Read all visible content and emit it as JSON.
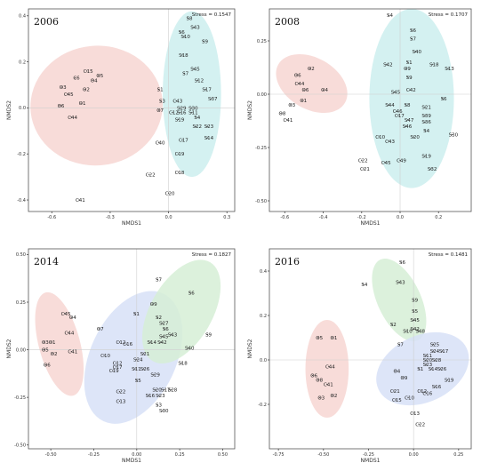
{
  "chart_data": [
    {
      "type": "scatter",
      "title": "2006",
      "stress_label": "Stress = 0.1547",
      "xlabel": "NMDS1",
      "ylabel": "NMDS2",
      "xlim": [
        -0.72,
        0.34
      ],
      "ylim": [
        -0.45,
        0.43
      ],
      "xticks": [
        -0.6,
        -0.3,
        0.0,
        0.3
      ],
      "xtick_labels": [
        "-0.6",
        "-0.3",
        "0.0",
        "0.3"
      ],
      "yticks": [
        -0.4,
        -0.2,
        0.0,
        0.2,
        0.4
      ],
      "ytick_labels": [
        "-0.4",
        "-0.2",
        "0.0",
        "0.2",
        "0.4"
      ],
      "ellipses": [
        {
          "group": "C",
          "color": "#f7d6d2",
          "cx": -0.37,
          "cy": 0.01,
          "rx": 0.34,
          "ry": 0.26,
          "angle": 5
        },
        {
          "group": "S",
          "color": "#cdeeee",
          "cx": 0.12,
          "cy": 0.06,
          "rx": 0.15,
          "ry": 0.36,
          "angle": 0
        }
      ],
      "points": [
        {
          "label": "C15",
          "x": -0.42,
          "y": 0.16
        },
        {
          "label": "C6",
          "x": -0.48,
          "y": 0.13
        },
        {
          "label": "O5",
          "x": -0.36,
          "y": 0.14
        },
        {
          "label": "O4",
          "x": -0.39,
          "y": 0.12
        },
        {
          "label": "O3",
          "x": -0.55,
          "y": 0.09
        },
        {
          "label": "O2",
          "x": -0.43,
          "y": 0.08
        },
        {
          "label": "C45",
          "x": -0.52,
          "y": 0.06
        },
        {
          "label": "O1",
          "x": -0.45,
          "y": 0.02
        },
        {
          "label": "O6",
          "x": -0.56,
          "y": 0.01
        },
        {
          "label": "C44",
          "x": -0.5,
          "y": -0.04
        },
        {
          "label": "C41",
          "x": -0.46,
          "y": -0.4
        },
        {
          "label": "S8",
          "x": 0.1,
          "y": 0.39
        },
        {
          "label": "S43",
          "x": 0.13,
          "y": 0.35
        },
        {
          "label": "S6",
          "x": 0.06,
          "y": 0.33
        },
        {
          "label": "S10",
          "x": 0.08,
          "y": 0.31
        },
        {
          "label": "S9",
          "x": 0.18,
          "y": 0.29
        },
        {
          "label": "S18",
          "x": 0.07,
          "y": 0.23
        },
        {
          "label": "S45",
          "x": 0.13,
          "y": 0.17
        },
        {
          "label": "S7",
          "x": 0.08,
          "y": 0.15
        },
        {
          "label": "S12",
          "x": 0.15,
          "y": 0.12
        },
        {
          "label": "S1",
          "x": -0.05,
          "y": 0.08
        },
        {
          "label": "S17",
          "x": 0.19,
          "y": 0.08
        },
        {
          "label": "S37",
          "x": 0.22,
          "y": 0.04
        },
        {
          "label": "S3",
          "x": -0.04,
          "y": 0.03
        },
        {
          "label": "C43",
          "x": 0.04,
          "y": 0.03
        },
        {
          "label": "S29",
          "x": 0.06,
          "y": 0.0
        },
        {
          "label": "S30",
          "x": 0.12,
          "y": 0.0
        },
        {
          "label": "O7",
          "x": -0.05,
          "y": -0.01
        },
        {
          "label": "C12",
          "x": 0.02,
          "y": -0.02
        },
        {
          "label": "S16",
          "x": 0.06,
          "y": -0.02
        },
        {
          "label": "S11",
          "x": 0.12,
          "y": -0.02
        },
        {
          "label": "S4",
          "x": 0.14,
          "y": -0.04
        },
        {
          "label": "S19",
          "x": 0.05,
          "y": -0.05
        },
        {
          "label": "S22",
          "x": 0.14,
          "y": -0.08
        },
        {
          "label": "S23",
          "x": 0.2,
          "y": -0.08
        },
        {
          "label": "S14",
          "x": 0.2,
          "y": -0.13
        },
        {
          "label": "C40",
          "x": -0.05,
          "y": -0.15
        },
        {
          "label": "C17",
          "x": 0.07,
          "y": -0.14
        },
        {
          "label": "C19",
          "x": 0.05,
          "y": -0.2
        },
        {
          "label": "C22",
          "x": -0.1,
          "y": -0.29
        },
        {
          "label": "C18",
          "x": 0.05,
          "y": -0.28
        },
        {
          "label": "C20",
          "x": 0.0,
          "y": -0.37
        }
      ]
    },
    {
      "type": "scatter",
      "title": "2008",
      "stress_label": "Stress = 0.1707",
      "xlabel": "NMDS1",
      "ylabel": "NMDS2",
      "xlim": [
        -0.68,
        0.37
      ],
      "ylim": [
        -0.55,
        0.4
      ],
      "xticks": [
        -0.6,
        -0.4,
        -0.2,
        0.0,
        0.2
      ],
      "xtick_labels": [
        "-0.6",
        "-0.4",
        "-0.2",
        "0.0",
        "0.2"
      ],
      "yticks": [
        -0.5,
        -0.25,
        0.0,
        0.25
      ],
      "ytick_labels": [
        "-0.50",
        "-0.25",
        "0.00",
        "0.25"
      ],
      "ellipses": [
        {
          "group": "C",
          "color": "#f7d6d2",
          "cx": -0.46,
          "cy": 0.05,
          "rx": 0.2,
          "ry": 0.12,
          "angle": -30
        },
        {
          "group": "S",
          "color": "#cdeeee",
          "cx": 0.06,
          "cy": -0.02,
          "rx": 0.22,
          "ry": 0.42,
          "angle": 0
        }
      ],
      "points": [
        {
          "label": "S4",
          "x": -0.06,
          "y": 0.37
        },
        {
          "label": "S6",
          "x": 0.06,
          "y": 0.3
        },
        {
          "label": "S7",
          "x": 0.06,
          "y": 0.26
        },
        {
          "label": "S40",
          "x": 0.08,
          "y": 0.2
        },
        {
          "label": "S1",
          "x": 0.04,
          "y": 0.15
        },
        {
          "label": "S18",
          "x": 0.17,
          "y": 0.14
        },
        {
          "label": "S13",
          "x": 0.25,
          "y": 0.12
        },
        {
          "label": "S42",
          "x": -0.07,
          "y": 0.14
        },
        {
          "label": "O9",
          "x": 0.03,
          "y": 0.12
        },
        {
          "label": "S9",
          "x": 0.04,
          "y": 0.08
        },
        {
          "label": "C42",
          "x": 0.05,
          "y": 0.02
        },
        {
          "label": "S45",
          "x": -0.03,
          "y": 0.01
        },
        {
          "label": "S6",
          "x": 0.22,
          "y": -0.02
        },
        {
          "label": "S44",
          "x": -0.06,
          "y": -0.05
        },
        {
          "label": "S8",
          "x": 0.03,
          "y": -0.05
        },
        {
          "label": "S21",
          "x": 0.13,
          "y": -0.06
        },
        {
          "label": "C46",
          "x": -0.02,
          "y": -0.08
        },
        {
          "label": "C17",
          "x": -0.01,
          "y": -0.1
        },
        {
          "label": "S47",
          "x": 0.04,
          "y": -0.12
        },
        {
          "label": "S39",
          "x": 0.13,
          "y": -0.1
        },
        {
          "label": "S46",
          "x": 0.03,
          "y": -0.15
        },
        {
          "label": "S36",
          "x": 0.13,
          "y": -0.13
        },
        {
          "label": "S4",
          "x": 0.13,
          "y": -0.17
        },
        {
          "label": "C10",
          "x": -0.11,
          "y": -0.2
        },
        {
          "label": "C43",
          "x": -0.06,
          "y": -0.22
        },
        {
          "label": "S20",
          "x": 0.07,
          "y": -0.2
        },
        {
          "label": "S30",
          "x": 0.27,
          "y": -0.19
        },
        {
          "label": "C22",
          "x": -0.2,
          "y": -0.31
        },
        {
          "label": "C45",
          "x": -0.08,
          "y": -0.32
        },
        {
          "label": "C49",
          "x": 0.0,
          "y": -0.31
        },
        {
          "label": "S19",
          "x": 0.13,
          "y": -0.29
        },
        {
          "label": "C21",
          "x": -0.19,
          "y": -0.35
        },
        {
          "label": "S32",
          "x": 0.16,
          "y": -0.35
        },
        {
          "label": "O2",
          "x": -0.47,
          "y": 0.12
        },
        {
          "label": "O6",
          "x": -0.54,
          "y": 0.09
        },
        {
          "label": "C44",
          "x": -0.53,
          "y": 0.05
        },
        {
          "label": "O6",
          "x": -0.5,
          "y": 0.02
        },
        {
          "label": "O4",
          "x": -0.4,
          "y": 0.02
        },
        {
          "label": "O1",
          "x": -0.51,
          "y": -0.03
        },
        {
          "label": "O3",
          "x": -0.57,
          "y": -0.05
        },
        {
          "label": "O8",
          "x": -0.62,
          "y": -0.09
        },
        {
          "label": "C41",
          "x": -0.59,
          "y": -0.12
        }
      ]
    },
    {
      "type": "scatter",
      "title": "2014",
      "stress_label": "Stress = 0.1827",
      "xlabel": "NMDS1",
      "ylabel": "NMDS2",
      "xlim": [
        -0.63,
        0.57
      ],
      "ylim": [
        -0.52,
        0.53
      ],
      "xticks": [
        -0.5,
        -0.25,
        0.0,
        0.25,
        0.5
      ],
      "xtick_labels": [
        "-0.50",
        "-0.25",
        "0.00",
        "0.25",
        "0.50"
      ],
      "yticks": [
        -0.5,
        -0.25,
        0.0,
        0.25,
        0.5
      ],
      "ytick_labels": [
        "-0.50",
        "-0.25",
        "0.00",
        "0.25",
        "0.50"
      ],
      "ellipses": [
        {
          "group": "C",
          "color": "#f7d6d2",
          "cx": -0.45,
          "cy": 0.03,
          "rx": 0.12,
          "ry": 0.28,
          "angle": 15
        },
        {
          "group": "B",
          "color": "#d7e1f7",
          "cx": -0.02,
          "cy": -0.04,
          "rx": 0.25,
          "ry": 0.37,
          "angle": -25
        },
        {
          "group": "S",
          "color": "#d6efd6",
          "cx": 0.26,
          "cy": 0.2,
          "rx": 0.18,
          "ry": 0.3,
          "angle": -30
        }
      ],
      "points": [
        {
          "label": "C45",
          "x": -0.42,
          "y": 0.19
        },
        {
          "label": "O4",
          "x": -0.38,
          "y": 0.17
        },
        {
          "label": "C44",
          "x": -0.4,
          "y": 0.09
        },
        {
          "label": "O3",
          "x": -0.54,
          "y": 0.04
        },
        {
          "label": "O1",
          "x": -0.5,
          "y": 0.04
        },
        {
          "label": "O5",
          "x": -0.54,
          "y": 0.0
        },
        {
          "label": "O2",
          "x": -0.49,
          "y": -0.02
        },
        {
          "label": "C41",
          "x": -0.38,
          "y": -0.01
        },
        {
          "label": "O6",
          "x": -0.53,
          "y": -0.08
        },
        {
          "label": "O7",
          "x": -0.22,
          "y": 0.11
        },
        {
          "label": "S1",
          "x": -0.01,
          "y": 0.19
        },
        {
          "label": "O9",
          "x": 0.09,
          "y": 0.24
        },
        {
          "label": "S7",
          "x": 0.12,
          "y": 0.37
        },
        {
          "label": "S6",
          "x": 0.31,
          "y": 0.3
        },
        {
          "label": "S2",
          "x": 0.12,
          "y": 0.17
        },
        {
          "label": "S27",
          "x": 0.15,
          "y": 0.14
        },
        {
          "label": "S6",
          "x": 0.16,
          "y": 0.11
        },
        {
          "label": "S45",
          "x": 0.15,
          "y": 0.07
        },
        {
          "label": "S9",
          "x": 0.41,
          "y": 0.08
        },
        {
          "label": "S43",
          "x": 0.2,
          "y": 0.08
        },
        {
          "label": "S14",
          "x": 0.08,
          "y": 0.04
        },
        {
          "label": "S42",
          "x": 0.14,
          "y": 0.04
        },
        {
          "label": "S40",
          "x": 0.3,
          "y": 0.01
        },
        {
          "label": "C12",
          "x": -0.1,
          "y": 0.04
        },
        {
          "label": "C16",
          "x": -0.06,
          "y": 0.03
        },
        {
          "label": "C10",
          "x": -0.19,
          "y": -0.03
        },
        {
          "label": "S21",
          "x": 0.04,
          "y": -0.02
        },
        {
          "label": "S18",
          "x": 0.26,
          "y": -0.07
        },
        {
          "label": "S24",
          "x": 0.0,
          "y": -0.05
        },
        {
          "label": "C12",
          "x": -0.12,
          "y": -0.07
        },
        {
          "label": "C17",
          "x": -0.12,
          "y": -0.09
        },
        {
          "label": "C19",
          "x": -0.14,
          "y": -0.11
        },
        {
          "label": "S11",
          "x": -0.01,
          "y": -0.1
        },
        {
          "label": "S26",
          "x": 0.04,
          "y": -0.1
        },
        {
          "label": "S29",
          "x": 0.1,
          "y": -0.13
        },
        {
          "label": "S5",
          "x": 0.0,
          "y": -0.16
        },
        {
          "label": "C22",
          "x": -0.1,
          "y": -0.22
        },
        {
          "label": "S20",
          "x": 0.11,
          "y": -0.21
        },
        {
          "label": "S17",
          "x": 0.16,
          "y": -0.21
        },
        {
          "label": "S28",
          "x": 0.2,
          "y": -0.21
        },
        {
          "label": "S16",
          "x": 0.07,
          "y": -0.24
        },
        {
          "label": "S23",
          "x": 0.13,
          "y": -0.24
        },
        {
          "label": "C13",
          "x": -0.1,
          "y": -0.27
        },
        {
          "label": "S3",
          "x": 0.12,
          "y": -0.29
        },
        {
          "label": "S30",
          "x": 0.15,
          "y": -0.32
        }
      ]
    },
    {
      "type": "scatter",
      "title": "2016",
      "stress_label": "Stress = 0.1481",
      "xlabel": "NMDS1",
      "ylabel": "NMDS2",
      "xlim": [
        -0.8,
        0.32
      ],
      "ylim": [
        -0.4,
        0.5
      ],
      "xticks": [
        -0.75,
        -0.5,
        -0.25,
        0.0,
        0.25
      ],
      "xtick_labels": [
        "-0.75",
        "-0.50",
        "-0.25",
        "0.00",
        "0.25"
      ],
      "yticks": [
        -0.2,
        0.0,
        0.2,
        0.4
      ],
      "ytick_labels": [
        "-0.2",
        "0.0",
        "0.2",
        "0.4"
      ],
      "ellipses": [
        {
          "group": "C",
          "color": "#f7d6d2",
          "cx": -0.48,
          "cy": -0.04,
          "rx": 0.12,
          "ry": 0.22,
          "angle": 0
        },
        {
          "group": "S",
          "color": "#d6efd6",
          "cx": -0.08,
          "cy": 0.27,
          "rx": 0.12,
          "ry": 0.2,
          "angle": 25
        },
        {
          "group": "B",
          "color": "#d7e1f7",
          "cx": 0.05,
          "cy": -0.04,
          "rx": 0.27,
          "ry": 0.15,
          "angle": 25
        }
      ],
      "points": [
        {
          "label": "S6",
          "x": -0.07,
          "y": 0.44
        },
        {
          "label": "S4",
          "x": -0.28,
          "y": 0.34
        },
        {
          "label": "S43",
          "x": -0.08,
          "y": 0.35
        },
        {
          "label": "S9",
          "x": 0.0,
          "y": 0.27
        },
        {
          "label": "S5",
          "x": 0.0,
          "y": 0.22
        },
        {
          "label": "S45",
          "x": 0.0,
          "y": 0.18
        },
        {
          "label": "S2",
          "x": -0.12,
          "y": 0.16
        },
        {
          "label": "S10",
          "x": -0.04,
          "y": 0.13
        },
        {
          "label": "S42",
          "x": 0.0,
          "y": 0.14
        },
        {
          "label": "S48",
          "x": 0.03,
          "y": 0.13
        },
        {
          "label": "S7",
          "x": -0.08,
          "y": 0.07
        },
        {
          "label": "S25",
          "x": 0.11,
          "y": 0.07
        },
        {
          "label": "S24",
          "x": 0.11,
          "y": 0.04
        },
        {
          "label": "S17",
          "x": 0.16,
          "y": 0.04
        },
        {
          "label": "S11",
          "x": 0.07,
          "y": 0.02
        },
        {
          "label": "S20",
          "x": 0.07,
          "y": 0.0
        },
        {
          "label": "S28",
          "x": 0.12,
          "y": 0.0
        },
        {
          "label": "S23",
          "x": 0.07,
          "y": -0.02
        },
        {
          "label": "S14",
          "x": 0.1,
          "y": -0.04
        },
        {
          "label": "S26",
          "x": 0.15,
          "y": -0.04
        },
        {
          "label": "O4",
          "x": -0.1,
          "y": -0.05
        },
        {
          "label": "S1",
          "x": 0.03,
          "y": -0.04
        },
        {
          "label": "O9",
          "x": -0.06,
          "y": -0.08
        },
        {
          "label": "S19",
          "x": 0.19,
          "y": -0.09
        },
        {
          "label": "S16",
          "x": 0.12,
          "y": -0.12
        },
        {
          "label": "C21",
          "x": -0.11,
          "y": -0.14
        },
        {
          "label": "C12",
          "x": 0.04,
          "y": -0.14
        },
        {
          "label": "C16",
          "x": 0.07,
          "y": -0.15
        },
        {
          "label": "C10",
          "x": -0.03,
          "y": -0.17
        },
        {
          "label": "C15",
          "x": -0.1,
          "y": -0.18
        },
        {
          "label": "C13",
          "x": 0.0,
          "y": -0.24
        },
        {
          "label": "C22",
          "x": 0.03,
          "y": -0.29
        },
        {
          "label": "O5",
          "x": -0.53,
          "y": 0.1
        },
        {
          "label": "O1",
          "x": -0.45,
          "y": 0.1
        },
        {
          "label": "C44",
          "x": -0.47,
          "y": -0.03
        },
        {
          "label": "O6",
          "x": -0.56,
          "y": -0.07
        },
        {
          "label": "O8",
          "x": -0.53,
          "y": -0.09
        },
        {
          "label": "C41",
          "x": -0.48,
          "y": -0.11
        },
        {
          "label": "O3",
          "x": -0.52,
          "y": -0.17
        },
        {
          "label": "O2",
          "x": -0.45,
          "y": -0.16
        }
      ]
    }
  ]
}
